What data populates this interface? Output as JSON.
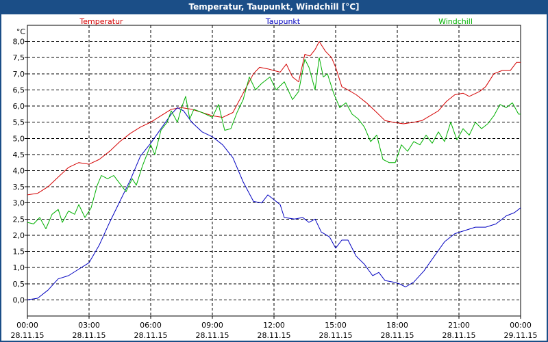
{
  "window": {
    "title": "Temperatur, Taupunkt, Windchill [°C]"
  },
  "colors": {
    "frame": "#1b4e87",
    "temperature": "#d40000",
    "dewpoint": "#0000c0",
    "windchill": "#00b000",
    "grid": "#000000"
  },
  "chart_data": {
    "type": "line",
    "title": "Temperatur, Taupunkt, Windchill [°C]",
    "ylabel": "°C",
    "xlabel": "",
    "x_range_hours": [
      0,
      24
    ],
    "ylim": [
      -0.5,
      8.5
    ],
    "grid": true,
    "legend_placement": "top",
    "y_ticks": [
      "0,0",
      "0,5",
      "1,0",
      "1,5",
      "2,0",
      "2,5",
      "3,0",
      "3,5",
      "4,0",
      "4,5",
      "5,0",
      "5,5",
      "6,0",
      "6,5",
      "7,0",
      "7,5",
      "8,0"
    ],
    "x_ticks": [
      {
        "time": "00:00",
        "date": "28.11.15"
      },
      {
        "time": "03:00",
        "date": "28.11.15"
      },
      {
        "time": "06:00",
        "date": "28.11.15"
      },
      {
        "time": "09:00",
        "date": "28.11.15"
      },
      {
        "time": "12:00",
        "date": "28.11.15"
      },
      {
        "time": "15:00",
        "date": "28.11.15"
      },
      {
        "time": "18:00",
        "date": "28.11.15"
      },
      {
        "time": "21:00",
        "date": "28.11.15"
      },
      {
        "time": "00:00",
        "date": "29.11.15"
      }
    ],
    "series": [
      {
        "name": "Temperatur",
        "color": "#d40000",
        "points": [
          [
            0,
            3.25
          ],
          [
            0.5,
            3.3
          ],
          [
            1,
            3.5
          ],
          [
            1.5,
            3.8
          ],
          [
            2,
            4.1
          ],
          [
            2.5,
            4.25
          ],
          [
            3,
            4.2
          ],
          [
            3.5,
            4.35
          ],
          [
            4,
            4.6
          ],
          [
            4.5,
            4.9
          ],
          [
            5,
            5.15
          ],
          [
            5.5,
            5.35
          ],
          [
            6,
            5.5
          ],
          [
            6.5,
            5.7
          ],
          [
            7,
            5.9
          ],
          [
            7.5,
            5.95
          ],
          [
            8,
            5.9
          ],
          [
            8.5,
            5.8
          ],
          [
            9,
            5.7
          ],
          [
            9.5,
            5.65
          ],
          [
            10,
            5.8
          ],
          [
            10.5,
            6.4
          ],
          [
            11,
            7.0
          ],
          [
            11.3,
            7.2
          ],
          [
            11.7,
            7.15
          ],
          [
            12,
            7.1
          ],
          [
            12.3,
            7.05
          ],
          [
            12.6,
            7.3
          ],
          [
            12.9,
            6.9
          ],
          [
            13.2,
            6.75
          ],
          [
            13.5,
            7.6
          ],
          [
            13.75,
            7.55
          ],
          [
            14,
            7.75
          ],
          [
            14.2,
            8.0
          ],
          [
            14.5,
            7.7
          ],
          [
            14.8,
            7.5
          ],
          [
            15,
            7.2
          ],
          [
            15.3,
            6.6
          ],
          [
            15.6,
            6.5
          ],
          [
            16,
            6.35
          ],
          [
            16.5,
            6.1
          ],
          [
            17,
            5.8
          ],
          [
            17.4,
            5.55
          ],
          [
            17.8,
            5.5
          ],
          [
            18.3,
            5.45
          ],
          [
            18.8,
            5.5
          ],
          [
            19.2,
            5.55
          ],
          [
            19.6,
            5.7
          ],
          [
            20,
            5.85
          ],
          [
            20.4,
            6.15
          ],
          [
            20.8,
            6.35
          ],
          [
            21.2,
            6.4
          ],
          [
            21.5,
            6.3
          ],
          [
            22,
            6.45
          ],
          [
            22.3,
            6.6
          ],
          [
            22.7,
            7.0
          ],
          [
            23.1,
            7.1
          ],
          [
            23.5,
            7.1
          ],
          [
            23.8,
            7.35
          ],
          [
            24,
            7.35
          ]
        ]
      },
      {
        "name": "Taupunkt",
        "color": "#0000c0",
        "points": [
          [
            0,
            0.0
          ],
          [
            0.5,
            0.05
          ],
          [
            1,
            0.3
          ],
          [
            1.5,
            0.65
          ],
          [
            2,
            0.75
          ],
          [
            2.5,
            0.95
          ],
          [
            3,
            1.15
          ],
          [
            3.5,
            1.7
          ],
          [
            4,
            2.4
          ],
          [
            4.5,
            3.05
          ],
          [
            5,
            3.7
          ],
          [
            5.5,
            4.45
          ],
          [
            6,
            4.85
          ],
          [
            6.5,
            5.3
          ],
          [
            7,
            5.75
          ],
          [
            7.3,
            5.95
          ],
          [
            7.6,
            5.85
          ],
          [
            8,
            5.5
          ],
          [
            8.5,
            5.2
          ],
          [
            9,
            5.05
          ],
          [
            9.5,
            4.8
          ],
          [
            10,
            4.4
          ],
          [
            10.5,
            3.65
          ],
          [
            11,
            3.05
          ],
          [
            11.4,
            3.0
          ],
          [
            11.7,
            3.25
          ],
          [
            12,
            3.1
          ],
          [
            12.3,
            2.95
          ],
          [
            12.5,
            2.55
          ],
          [
            13,
            2.5
          ],
          [
            13.4,
            2.55
          ],
          [
            13.7,
            2.4
          ],
          [
            14,
            2.5
          ],
          [
            14.3,
            2.1
          ],
          [
            14.7,
            1.95
          ],
          [
            15,
            1.6
          ],
          [
            15.3,
            1.85
          ],
          [
            15.6,
            1.85
          ],
          [
            16,
            1.35
          ],
          [
            16.4,
            1.1
          ],
          [
            16.8,
            0.75
          ],
          [
            17.1,
            0.85
          ],
          [
            17.4,
            0.6
          ],
          [
            17.8,
            0.55
          ],
          [
            18.1,
            0.5
          ],
          [
            18.4,
            0.4
          ],
          [
            18.8,
            0.55
          ],
          [
            19.3,
            0.9
          ],
          [
            19.8,
            1.35
          ],
          [
            20.3,
            1.8
          ],
          [
            20.8,
            2.05
          ],
          [
            21.3,
            2.15
          ],
          [
            21.8,
            2.25
          ],
          [
            22.3,
            2.25
          ],
          [
            22.8,
            2.35
          ],
          [
            23.3,
            2.6
          ],
          [
            23.7,
            2.7
          ],
          [
            24,
            2.85
          ]
        ]
      },
      {
        "name": "Windchill",
        "color": "#00b000",
        "points": [
          [
            0,
            2.4
          ],
          [
            0.3,
            2.35
          ],
          [
            0.6,
            2.55
          ],
          [
            0.9,
            2.2
          ],
          [
            1.2,
            2.65
          ],
          [
            1.5,
            2.8
          ],
          [
            1.7,
            2.4
          ],
          [
            2,
            2.75
          ],
          [
            2.3,
            2.65
          ],
          [
            2.5,
            2.95
          ],
          [
            2.8,
            2.55
          ],
          [
            3.1,
            2.85
          ],
          [
            3.4,
            3.55
          ],
          [
            3.6,
            3.85
          ],
          [
            3.9,
            3.75
          ],
          [
            4.2,
            3.85
          ],
          [
            4.5,
            3.6
          ],
          [
            4.8,
            3.35
          ],
          [
            5.1,
            3.75
          ],
          [
            5.3,
            3.55
          ],
          [
            5.6,
            4.15
          ],
          [
            6,
            4.8
          ],
          [
            6.2,
            4.5
          ],
          [
            6.5,
            5.25
          ],
          [
            6.8,
            5.5
          ],
          [
            7.0,
            5.85
          ],
          [
            7.3,
            5.5
          ],
          [
            7.5,
            5.95
          ],
          [
            7.7,
            6.3
          ],
          [
            7.9,
            5.6
          ],
          [
            8.1,
            5.9
          ],
          [
            8.5,
            5.8
          ],
          [
            9,
            5.65
          ],
          [
            9.3,
            6.05
          ],
          [
            9.6,
            5.25
          ],
          [
            9.9,
            5.3
          ],
          [
            10.2,
            5.8
          ],
          [
            10.5,
            6.2
          ],
          [
            10.8,
            6.9
          ],
          [
            11.1,
            6.5
          ],
          [
            11.4,
            6.7
          ],
          [
            11.8,
            6.9
          ],
          [
            12.1,
            6.5
          ],
          [
            12.5,
            6.75
          ],
          [
            12.9,
            6.2
          ],
          [
            13.2,
            6.45
          ],
          [
            13.5,
            7.45
          ],
          [
            13.7,
            7.2
          ],
          [
            14.0,
            6.5
          ],
          [
            14.2,
            7.5
          ],
          [
            14.4,
            6.9
          ],
          [
            14.6,
            7.0
          ],
          [
            14.9,
            6.4
          ],
          [
            15.2,
            5.95
          ],
          [
            15.5,
            6.1
          ],
          [
            15.8,
            5.75
          ],
          [
            16.1,
            5.6
          ],
          [
            16.4,
            5.35
          ],
          [
            16.7,
            4.9
          ],
          [
            17.0,
            5.1
          ],
          [
            17.3,
            4.35
          ],
          [
            17.6,
            4.25
          ],
          [
            17.9,
            4.25
          ],
          [
            18.2,
            4.8
          ],
          [
            18.5,
            4.6
          ],
          [
            18.8,
            4.9
          ],
          [
            19.1,
            4.8
          ],
          [
            19.4,
            5.1
          ],
          [
            19.7,
            4.85
          ],
          [
            20.0,
            5.2
          ],
          [
            20.3,
            4.9
          ],
          [
            20.6,
            5.5
          ],
          [
            20.9,
            4.95
          ],
          [
            21.2,
            5.3
          ],
          [
            21.5,
            5.1
          ],
          [
            21.8,
            5.5
          ],
          [
            22.1,
            5.3
          ],
          [
            22.4,
            5.45
          ],
          [
            22.7,
            5.7
          ],
          [
            23.0,
            6.05
          ],
          [
            23.3,
            5.95
          ],
          [
            23.6,
            6.1
          ],
          [
            23.9,
            5.75
          ],
          [
            24,
            5.75
          ]
        ]
      }
    ]
  }
}
